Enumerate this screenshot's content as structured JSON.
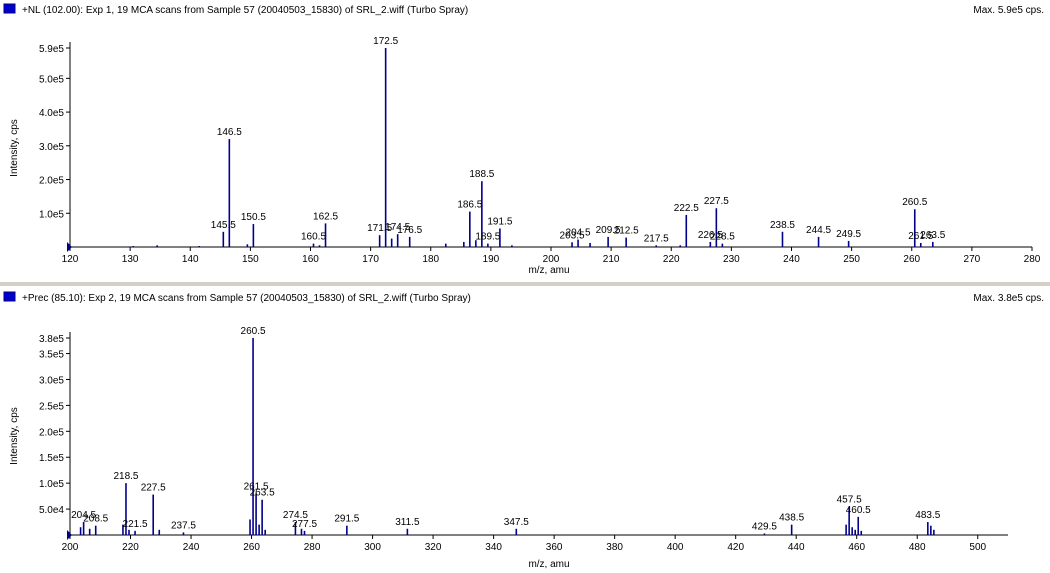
{
  "accent_color": "#00008b",
  "chart_data": [
    {
      "type": "bar",
      "title": "+NL (102.00): Exp 1, 19 MCA scans from Sample 57 (20040503_15830) of SRL_2.wiff (Turbo Spray)",
      "max_label": "Max. 5.9e5 cps.",
      "xlabel": "m/z, amu",
      "ylabel": "Intensity, cps",
      "xlim": [
        120,
        280
      ],
      "ylim": [
        0,
        590000
      ],
      "x_ticks": [
        120,
        130,
        140,
        150,
        160,
        170,
        180,
        190,
        200,
        210,
        220,
        230,
        240,
        250,
        260,
        270,
        280
      ],
      "y_ticks": [
        {
          "value": 100000,
          "label": "1.0e5"
        },
        {
          "value": 200000,
          "label": "2.0e5"
        },
        {
          "value": 300000,
          "label": "3.0e5"
        },
        {
          "value": 400000,
          "label": "4.0e5"
        },
        {
          "value": 500000,
          "label": "5.0e5"
        },
        {
          "value": 590000,
          "label": "5.9e5"
        }
      ],
      "peaks": [
        {
          "x": 130.5,
          "y": 3000
        },
        {
          "x": 134.5,
          "y": 5000
        },
        {
          "x": 141.5,
          "y": 3000
        },
        {
          "x": 145.5,
          "y": 45000,
          "label": "145.5"
        },
        {
          "x": 146.5,
          "y": 320000,
          "label": "146.5"
        },
        {
          "x": 149.5,
          "y": 8000
        },
        {
          "x": 150.5,
          "y": 68000,
          "label": "150.5"
        },
        {
          "x": 160.5,
          "y": 10000,
          "label": "160.5"
        },
        {
          "x": 161.5,
          "y": 5000
        },
        {
          "x": 162.5,
          "y": 70000,
          "label": "162.5"
        },
        {
          "x": 171.5,
          "y": 35000,
          "label": "171.5"
        },
        {
          "x": 172.5,
          "y": 590000,
          "label": "172.5"
        },
        {
          "x": 173.5,
          "y": 25000
        },
        {
          "x": 174.5,
          "y": 38000,
          "label": "174.5"
        },
        {
          "x": 176.5,
          "y": 30000,
          "label": "176.5"
        },
        {
          "x": 182.5,
          "y": 10000
        },
        {
          "x": 185.5,
          "y": 15000
        },
        {
          "x": 186.5,
          "y": 105000,
          "label": "186.5"
        },
        {
          "x": 187.5,
          "y": 20000
        },
        {
          "x": 188.5,
          "y": 195000,
          "label": "188.5"
        },
        {
          "x": 189.5,
          "y": 10000,
          "label": "189.5"
        },
        {
          "x": 191.5,
          "y": 55000,
          "label": "191.5"
        },
        {
          "x": 193.5,
          "y": 5000
        },
        {
          "x": 203.5,
          "y": 14000,
          "label": "203.5"
        },
        {
          "x": 204.5,
          "y": 22000,
          "label": "204.5"
        },
        {
          "x": 206.5,
          "y": 12000
        },
        {
          "x": 209.5,
          "y": 30000,
          "label": "209.5"
        },
        {
          "x": 212.5,
          "y": 28000,
          "label": "212.5"
        },
        {
          "x": 217.5,
          "y": 5000,
          "label": "217.5"
        },
        {
          "x": 221.5,
          "y": 5000
        },
        {
          "x": 222.5,
          "y": 95000,
          "label": "222.5"
        },
        {
          "x": 226.5,
          "y": 15000,
          "label": "226.5"
        },
        {
          "x": 227.5,
          "y": 115000,
          "label": "227.5"
        },
        {
          "x": 228.5,
          "y": 10000,
          "label": "228.5"
        },
        {
          "x": 238.5,
          "y": 45000,
          "label": "238.5"
        },
        {
          "x": 244.5,
          "y": 30000,
          "label": "244.5"
        },
        {
          "x": 249.5,
          "y": 18000,
          "label": "249.5"
        },
        {
          "x": 260.5,
          "y": 112000,
          "label": "260.5"
        },
        {
          "x": 261.5,
          "y": 12000,
          "label": "261.5"
        },
        {
          "x": 263.5,
          "y": 15000,
          "label": "263.5"
        }
      ]
    },
    {
      "type": "bar",
      "title": "+Prec (85.10): Exp 2, 19 MCA scans from Sample 57 (20040503_15830) of SRL_2.wiff (Turbo Spray)",
      "max_label": "Max. 3.8e5 cps.",
      "xlabel": "m/z, amu",
      "ylabel": "Intensity, cps",
      "xlim": [
        200,
        510
      ],
      "ylim": [
        0,
        380000
      ],
      "x_ticks": [
        200,
        220,
        240,
        260,
        280,
        300,
        320,
        340,
        360,
        380,
        400,
        420,
        440,
        460,
        480,
        500
      ],
      "y_ticks": [
        {
          "value": 50000,
          "label": "5.0e4"
        },
        {
          "value": 100000,
          "label": "1.0e5"
        },
        {
          "value": 150000,
          "label": "1.5e5"
        },
        {
          "value": 200000,
          "label": "2.0e5"
        },
        {
          "value": 250000,
          "label": "2.5e5"
        },
        {
          "value": 300000,
          "label": "3.0e5"
        },
        {
          "value": 350000,
          "label": "3.5e5"
        },
        {
          "value": 380000,
          "label": "3.8e5"
        }
      ],
      "peaks": [
        {
          "x": 203.5,
          "y": 15000
        },
        {
          "x": 204.5,
          "y": 25000,
          "label": "204.5"
        },
        {
          "x": 206.5,
          "y": 12000
        },
        {
          "x": 208.5,
          "y": 18000,
          "label": "208.5"
        },
        {
          "x": 217.5,
          "y": 20000
        },
        {
          "x": 218.5,
          "y": 100000,
          "label": "218.5"
        },
        {
          "x": 219.5,
          "y": 10000
        },
        {
          "x": 221.5,
          "y": 8000,
          "label": "221.5"
        },
        {
          "x": 227.5,
          "y": 78000,
          "label": "227.5"
        },
        {
          "x": 229.5,
          "y": 10000
        },
        {
          "x": 237.5,
          "y": 5000,
          "label": "237.5"
        },
        {
          "x": 259.5,
          "y": 30000
        },
        {
          "x": 260.5,
          "y": 380000,
          "label": "260.5"
        },
        {
          "x": 261.5,
          "y": 80000,
          "label": "261.5"
        },
        {
          "x": 262.5,
          "y": 20000
        },
        {
          "x": 263.5,
          "y": 68000,
          "label": "263.5"
        },
        {
          "x": 264.5,
          "y": 10000
        },
        {
          "x": 274.5,
          "y": 25000,
          "label": "274.5"
        },
        {
          "x": 276.5,
          "y": 12000
        },
        {
          "x": 277.5,
          "y": 8000,
          "label": "277.5"
        },
        {
          "x": 291.5,
          "y": 18000,
          "label": "291.5"
        },
        {
          "x": 311.5,
          "y": 12000,
          "label": "311.5"
        },
        {
          "x": 347.5,
          "y": 12000,
          "label": "347.5"
        },
        {
          "x": 429.5,
          "y": 3000,
          "label": "429.5"
        },
        {
          "x": 438.5,
          "y": 20000,
          "label": "438.5"
        },
        {
          "x": 456.5,
          "y": 20000
        },
        {
          "x": 457.5,
          "y": 55000,
          "label": "457.5"
        },
        {
          "x": 458.5,
          "y": 15000
        },
        {
          "x": 459.5,
          "y": 10000
        },
        {
          "x": 460.5,
          "y": 35000,
          "label": "460.5"
        },
        {
          "x": 461.5,
          "y": 8000
        },
        {
          "x": 483.5,
          "y": 25000,
          "label": "483.5"
        },
        {
          "x": 484.5,
          "y": 18000
        },
        {
          "x": 485.5,
          "y": 10000
        }
      ]
    }
  ]
}
